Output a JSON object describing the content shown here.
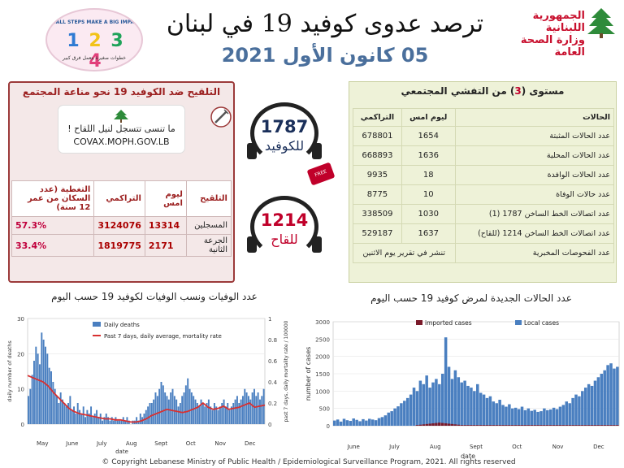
{
  "header": {
    "title": "ترصد عدوى كوفيد 19 في لبنان",
    "date": "05 كانون الأول 2021",
    "ministry_line1": "الجمهورية اللبنانية",
    "ministry_line2": "وزارة الصحة العامة",
    "badge_top": "SMALL STEPS MAKE A BIG IMPACT",
    "badge_steps": [
      "1",
      "2",
      "3",
      "4"
    ],
    "badge_bottom": "خطوات صغيرة بتعمل فرق كبير"
  },
  "vaccination": {
    "title": "التلقيح ضد الكوفيد 19 نحو مناعة المجتمع",
    "reminder": "ما تنسى تتسجل لنيل اللقاح !",
    "url": "COVAX.MOPH.GOV.LB",
    "columns": [
      "التلقيح",
      "ليوم امس",
      "التراكمي",
      "التغطية (عدد السكان من عمر 12 سنة)"
    ],
    "rows": [
      {
        "label": "المسجلين",
        "yesterday": "13314",
        "cumulative": "3124076",
        "coverage": "57.3%"
      },
      {
        "label": "الجرعة الثانية",
        "yesterday": "2171",
        "cumulative": "1819775",
        "coverage": "33.4%"
      }
    ]
  },
  "hotlines": {
    "covid": {
      "number": "1787",
      "label": "للكوفيد"
    },
    "vaccine": {
      "number": "1214",
      "label": "للقاح"
    },
    "stamp": "FREE"
  },
  "epidemiology": {
    "header_prefix": "مستوى (",
    "level": "3",
    "header_suffix": ") من التفشي المجتمعي",
    "columns": [
      "الحالات",
      "ليوم امس",
      "التراكمي"
    ],
    "rows": [
      {
        "label": "عدد الحالات المثبتة",
        "yesterday": "1654",
        "cumulative": "678801"
      },
      {
        "label": "عدد الحالات المحلية",
        "yesterday": "1636",
        "cumulative": "668893"
      },
      {
        "label": "عدد الحالات الوافدة",
        "yesterday": "18",
        "cumulative": "9935"
      },
      {
        "label": "عدد حالات الوفاة",
        "yesterday": "10",
        "cumulative": "8775"
      },
      {
        "label": "عدد اتصالات الخط الساخن 1787 (1)",
        "yesterday": "1030",
        "cumulative": "338509"
      },
      {
        "label": "عدد اتصالات الخط الساخن 1214 (للقاح)",
        "yesterday": "1637",
        "cumulative": "529187"
      }
    ],
    "lab_row": {
      "label": "عدد الفحوصات المخبرية",
      "value": "تنشر في تقرير يوم الاثنين"
    }
  },
  "chart_titles": {
    "deaths": "عدد الوفيات ونسب الوفيات لكوفيد 19 حسب اليوم",
    "cases": "عدد الحالات الجديدة لمرض كوفيد 19 حسب اليوم"
  },
  "colors": {
    "accent_red": "#9c2020",
    "bar_blue": "#4a7fc0",
    "line_red": "#d83030",
    "imported": "#7a1a2a",
    "epi_panel": "#eef2d8",
    "vax_panel": "#f4e8e8"
  },
  "chart_data": [
    {
      "type": "bar",
      "ylabel": "daily number of deaths",
      "y2label": "past 7 days, daily mortality rate / 100000",
      "xlabel": "date",
      "ylim": [
        0,
        30
      ],
      "y2lim": [
        0,
        1
      ],
      "yticks": [
        0,
        10,
        20,
        30
      ],
      "y2ticks": [
        "0",
        "0.2",
        "0.4",
        "0.6",
        "0.8",
        "1"
      ],
      "month_labels": [
        "May",
        "June",
        "July",
        "Aug",
        "Sept",
        "Oct",
        "Nov",
        "Dec"
      ],
      "legend": [
        "Daily deaths",
        "Past 7 days, daily average, mortality rate"
      ],
      "series": [
        {
          "name": "Daily deaths",
          "values": [
            8,
            10,
            14,
            18,
            22,
            20,
            17,
            26,
            24,
            22,
            20,
            16,
            15,
            12,
            10,
            8,
            6,
            9,
            7,
            6,
            5,
            6,
            8,
            4,
            5,
            3,
            6,
            4,
            3,
            5,
            2,
            4,
            3,
            5,
            2,
            3,
            4,
            2,
            3,
            1,
            2,
            3,
            2,
            1,
            2,
            1,
            2,
            1,
            1,
            1,
            2,
            1,
            2,
            1,
            0,
            1,
            1,
            2,
            1,
            3,
            2,
            3,
            4,
            5,
            6,
            6,
            7,
            9,
            8,
            10,
            12,
            11,
            9,
            8,
            7,
            9,
            10,
            8,
            7,
            5,
            6,
            8,
            9,
            11,
            13,
            10,
            9,
            8,
            7,
            6,
            5,
            7,
            6,
            5,
            6,
            7,
            5,
            4,
            6,
            5,
            4,
            5,
            6,
            7,
            5,
            6,
            4,
            5,
            6,
            7,
            8,
            6,
            7,
            8,
            10,
            9,
            8,
            7,
            9,
            10,
            8,
            9,
            7,
            8,
            10
          ]
        },
        {
          "name": "Past 7 days, daily average, mortality rate",
          "values": [
            0.46,
            0.44,
            0.42,
            0.4,
            0.36,
            0.3,
            0.25,
            0.2,
            0.15,
            0.12,
            0.1,
            0.09,
            0.08,
            0.07,
            0.06,
            0.05,
            0.05,
            0.04,
            0.04,
            0.03,
            0.02,
            0.02,
            0.03,
            0.05,
            0.08,
            0.1,
            0.12,
            0.14,
            0.13,
            0.12,
            0.11,
            0.12,
            0.14,
            0.16,
            0.2,
            0.16,
            0.14,
            0.15,
            0.17,
            0.14,
            0.15,
            0.16,
            0.18,
            0.2,
            0.16,
            0.17,
            0.18
          ]
        }
      ]
    },
    {
      "type": "bar",
      "ylabel": "number of cases",
      "xlabel": "date",
      "ylim": [
        0,
        3000
      ],
      "yticks": [
        0,
        500,
        1000,
        1500,
        2000,
        2500,
        3000
      ],
      "month_labels": [
        "June",
        "July",
        "Aug",
        "Sept",
        "Oct",
        "Nov",
        "Dec"
      ],
      "legend": [
        "imported cases",
        "Local cases"
      ],
      "series": [
        {
          "name": "Local cases",
          "values": [
            150,
            180,
            120,
            200,
            160,
            140,
            210,
            170,
            130,
            190,
            150,
            200,
            180,
            160,
            220,
            250,
            300,
            380,
            420,
            500,
            560,
            650,
            720,
            800,
            900,
            1100,
            1000,
            1300,
            1200,
            1450,
            1100,
            1250,
            1350,
            1200,
            1500,
            2550,
            1700,
            1350,
            1600,
            1400,
            1250,
            1300,
            1150,
            1100,
            1000,
            1200,
            950,
            900,
            800,
            850,
            700,
            650,
            750,
            600,
            550,
            620,
            500,
            520,
            480,
            550,
            450,
            500,
            430,
            460,
            400,
            420,
            500,
            450,
            470,
            520,
            480,
            550,
            600,
            700,
            650,
            800,
            900,
            850,
            1000,
            1100,
            1200,
            1150,
            1300,
            1400,
            1500,
            1600,
            1750,
            1800,
            1650,
            1700
          ]
        },
        {
          "name": "imported cases",
          "values": [
            0,
            0,
            0,
            0,
            0,
            0,
            0,
            0,
            0,
            0,
            0,
            0,
            0,
            0,
            0,
            0,
            0,
            0,
            0,
            0,
            0,
            0,
            0,
            0,
            0,
            0,
            20,
            30,
            40,
            50,
            60,
            70,
            80,
            90,
            80,
            70,
            60,
            50,
            40,
            30,
            20,
            20,
            20,
            20,
            20,
            20,
            20,
            20,
            20,
            20,
            20,
            20,
            20,
            20,
            20,
            20,
            20,
            20,
            20,
            20,
            20,
            20,
            20,
            20,
            20,
            20,
            20,
            20,
            20,
            20,
            20,
            20,
            20,
            20,
            20,
            20,
            20,
            20,
            20,
            20,
            20,
            20,
            20,
            20,
            20,
            20,
            20,
            20,
            20,
            20
          ]
        }
      ]
    }
  ],
  "footer": {
    "copyright": "© Copyright Lebanese Ministry of Public Health / Epidemiological Surveillance Program, 2021. All rights reserved"
  }
}
